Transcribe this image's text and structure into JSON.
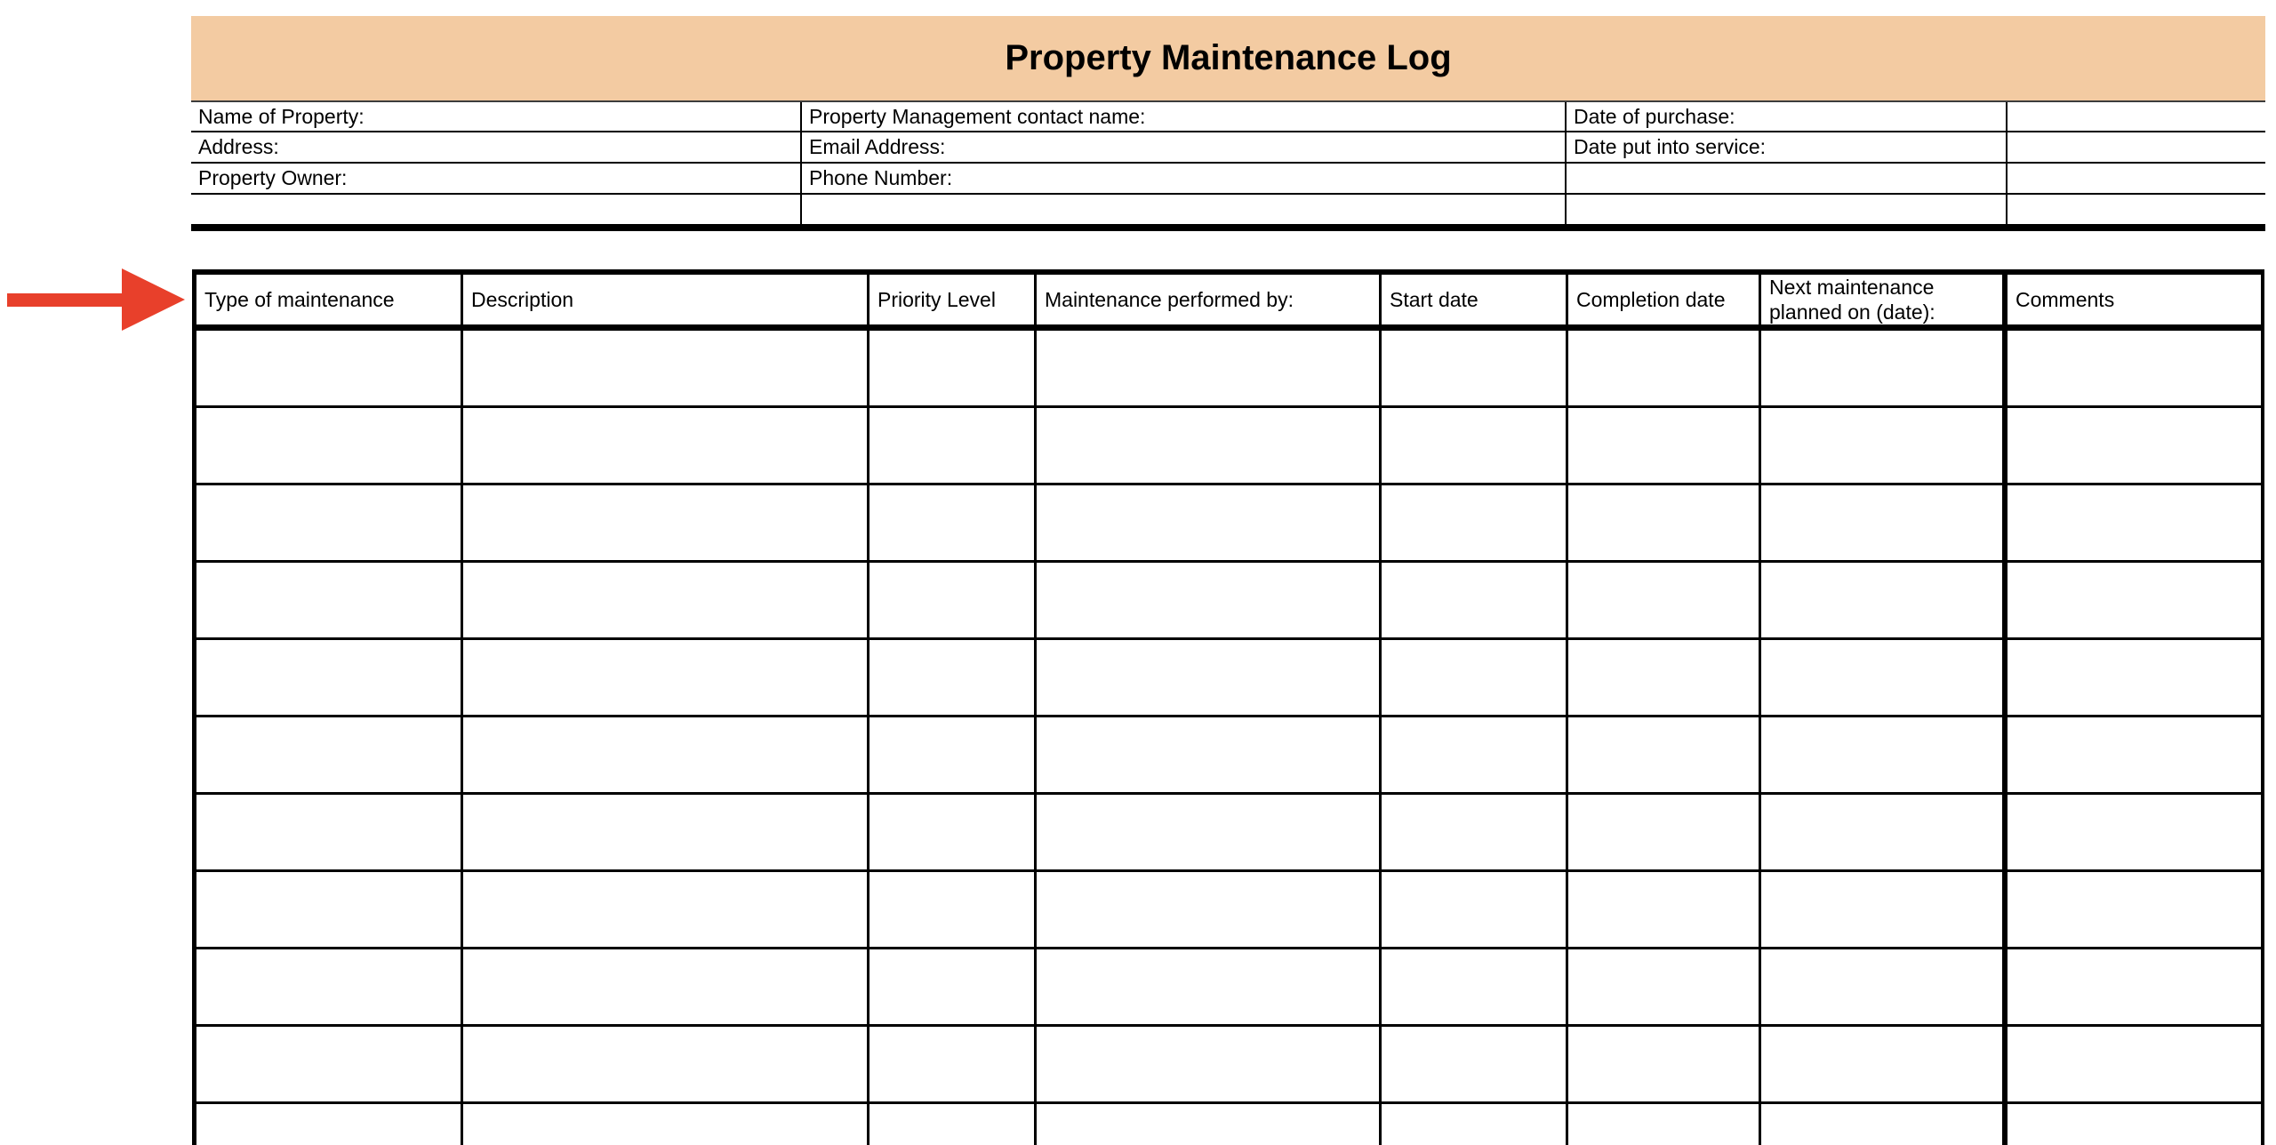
{
  "title": "Property Maintenance Log",
  "colors": {
    "title_bg": "#F3CBA2",
    "arrow": "#E8402B",
    "line": "#000000"
  },
  "info": {
    "rows": [
      {
        "c1": "Name of Property:",
        "c2": "Property Management contact name:",
        "c3": "Date of purchase:",
        "c4": ""
      },
      {
        "c1": "Address:",
        "c2": "Email Address:",
        "c3": "Date put into service:",
        "c4": ""
      },
      {
        "c1": "Property Owner:",
        "c2": "Phone Number:",
        "c3": "",
        "c4": ""
      },
      {
        "c1": "",
        "c2": "",
        "c3": "",
        "c4": ""
      }
    ]
  },
  "log_table": {
    "headers": [
      "Type of maintenance",
      "Description",
      "Priority Level",
      "Maintenance performed by:",
      "Start date",
      "Completion date",
      "Next maintenance planned on (date):",
      "Comments"
    ],
    "visible_empty_rows": 11
  },
  "annotation": {
    "type": "arrow",
    "direction": "right",
    "points_at": "log table header row",
    "color": "#E8402B"
  }
}
